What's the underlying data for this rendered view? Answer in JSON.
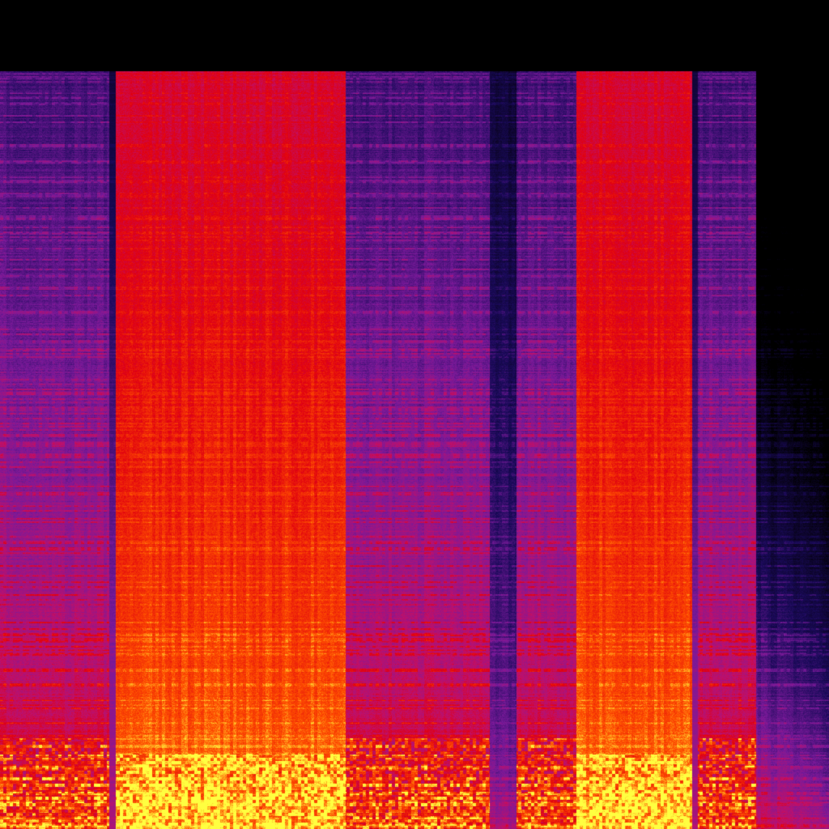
{
  "spectrogram": {
    "colormap": [
      "#000000",
      "#1a0a5a",
      "#7a1a9a",
      "#c0106a",
      "#e00010",
      "#ff5000",
      "#ffff40"
    ],
    "background": "#000000"
  }
}
